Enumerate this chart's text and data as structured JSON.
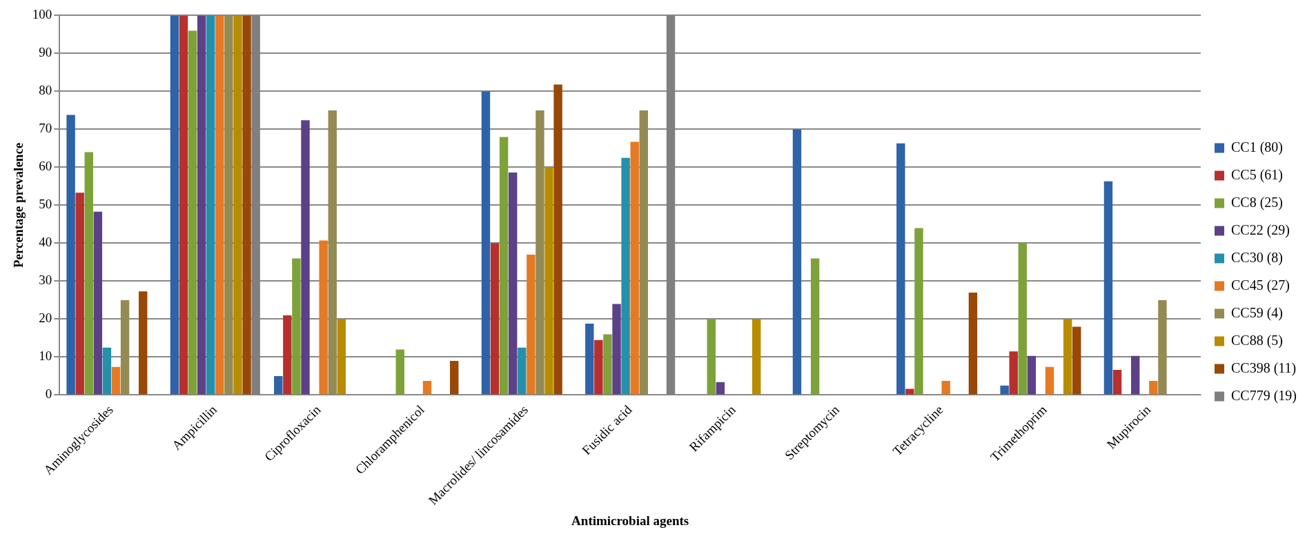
{
  "chart_data": {
    "type": "bar",
    "xlabel": "Antimicrobial agents",
    "ylabel": "Percentage prevalence",
    "categories": [
      "Aminoglycosides",
      "Ampicillin",
      "Ciprofloxacin",
      "Chloramphenicol",
      "Macrolides/ lincosamides",
      "Fusidic acid",
      "Rifampicin",
      "Streptomycin",
      "Tetracycline",
      "Trimethoprim",
      "Mupirocin"
    ],
    "series": [
      {
        "name": "CC1 (80)",
        "color": "#2e63a8",
        "values": [
          73.8,
          100,
          5,
          null,
          80,
          18.8,
          null,
          70,
          66.3,
          2.5,
          56.3
        ]
      },
      {
        "name": "CC5 (61)",
        "color": "#b8302e",
        "values": [
          53.3,
          100,
          21,
          null,
          40,
          14.5,
          null,
          null,
          1.6,
          11.5,
          6.6
        ]
      },
      {
        "name": "CC8 (25)",
        "color": "#7ea23a",
        "values": [
          64,
          96,
          36,
          12,
          68,
          16,
          20,
          36,
          44,
          40,
          null
        ]
      },
      {
        "name": "CC22 (29)",
        "color": "#5c4187",
        "values": [
          48.3,
          100,
          72.4,
          null,
          58.6,
          24,
          3.4,
          null,
          null,
          10.3,
          10.3
        ]
      },
      {
        "name": "CC30 (8)",
        "color": "#2690ab",
        "values": [
          12.5,
          100,
          null,
          null,
          12.5,
          62.5,
          null,
          null,
          null,
          null,
          null
        ]
      },
      {
        "name": "CC45 (27)",
        "color": "#e57a24",
        "values": [
          7.4,
          100,
          40.7,
          3.7,
          37,
          66.7,
          null,
          null,
          3.7,
          7.4,
          3.7
        ]
      },
      {
        "name": "CC59 (4)",
        "color": "#948a54",
        "values": [
          25,
          100,
          75,
          null,
          75,
          75,
          null,
          null,
          null,
          null,
          25
        ]
      },
      {
        "name": "CC88 (5)",
        "color": "#b88c00",
        "values": [
          null,
          100,
          20,
          null,
          60,
          null,
          20,
          null,
          null,
          20,
          null
        ]
      },
      {
        "name": "CC398 (11)",
        "color": "#984807",
        "values": [
          27.3,
          100,
          null,
          9,
          81.8,
          null,
          null,
          null,
          27,
          18,
          null
        ]
      },
      {
        "name": "CC779 (19)",
        "color": "#7f7f7f",
        "values": [
          null,
          100,
          null,
          null,
          null,
          100,
          null,
          null,
          null,
          null,
          null
        ]
      }
    ],
    "ylim": [
      0,
      100
    ],
    "yticks": [
      0,
      10,
      20,
      30,
      40,
      50,
      60,
      70,
      80,
      90,
      100
    ],
    "grid": "y",
    "legend": "right"
  }
}
